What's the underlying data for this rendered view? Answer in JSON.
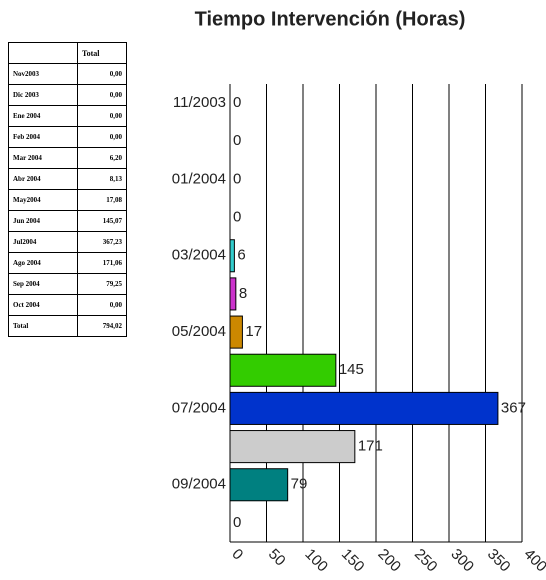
{
  "table": {
    "header": "Total",
    "rows": [
      [
        "Nov2003",
        "0,00"
      ],
      [
        "Dic 2003",
        "0,00"
      ],
      [
        "Ene 2004",
        "0,00"
      ],
      [
        "Feb 2004",
        "0,00"
      ],
      [
        "Mar 2004",
        "6,20"
      ],
      [
        "Abr 2004",
        "8,13"
      ],
      [
        "May2004",
        "17,08"
      ],
      [
        "Jun 2004",
        "145,07"
      ],
      [
        "Jul2004",
        "367,23"
      ],
      [
        "Ago 2004",
        "171,06"
      ],
      [
        "Sep 2004",
        "79,25"
      ],
      [
        "Oct 2004",
        "0,00"
      ],
      [
        "Total",
        "794,02"
      ]
    ]
  },
  "chart_data": {
    "type": "hbar",
    "title": "Tiempo Intervención (Horas)",
    "categories": [
      "11/2003",
      null,
      "01/2004",
      null,
      "03/2004",
      null,
      "05/2004",
      null,
      "07/2004",
      null,
      "09/2004",
      null
    ],
    "values": [
      0,
      0,
      0,
      0,
      6,
      8,
      17,
      145,
      367,
      171,
      79,
      0
    ],
    "colors": [
      "#33cccc",
      "#33cccc",
      "#33cccc",
      "#33cccc",
      "#33cccc",
      "#cc33cc",
      "#cc8800",
      "#33cc00",
      "#0033cc",
      "#cccccc",
      "#008080",
      "#33cccc"
    ],
    "xlim": [
      0,
      400
    ],
    "xticks": [
      0,
      50,
      100,
      150,
      200,
      250,
      300,
      350,
      400
    ],
    "grid": true
  }
}
